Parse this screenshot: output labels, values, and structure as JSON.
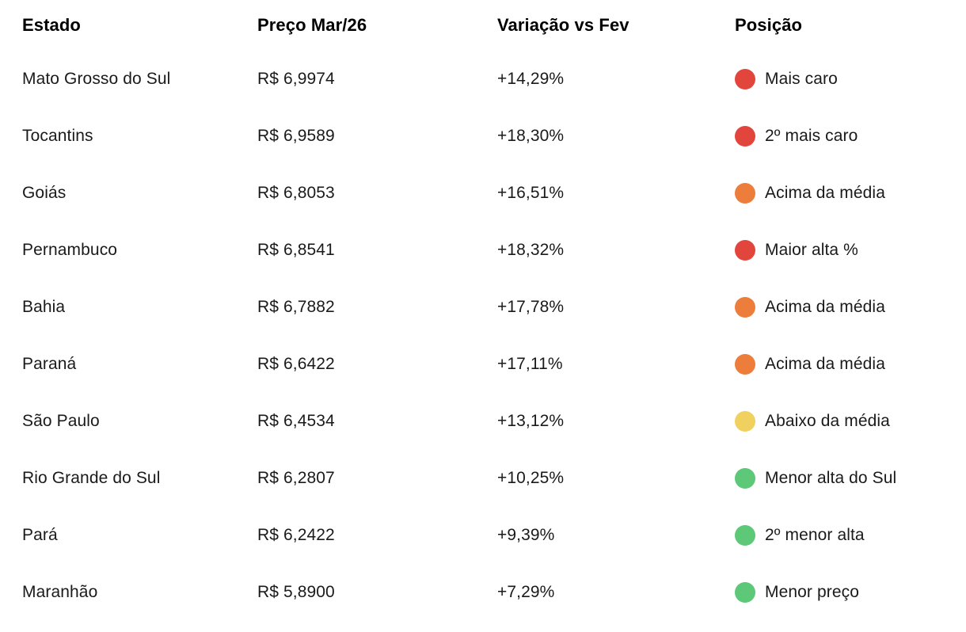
{
  "colors": {
    "red": "#E2453C",
    "orange": "#ED7D3A",
    "yellow": "#F0D05F",
    "green": "#5DC878"
  },
  "table": {
    "columns": [
      {
        "label": "Estado"
      },
      {
        "label": "Preço Mar/26"
      },
      {
        "label": "Variação vs Fev"
      },
      {
        "label": "Posição"
      }
    ],
    "rows": [
      {
        "estado": "Mato Grosso do Sul",
        "preco": "R$ 6,9974",
        "variacao": "+14,29%",
        "posicao": "Mais caro",
        "color": "red"
      },
      {
        "estado": "Tocantins",
        "preco": "R$ 6,9589",
        "variacao": "+18,30%",
        "posicao": "2º mais caro",
        "color": "red"
      },
      {
        "estado": "Goiás",
        "preco": "R$ 6,8053",
        "variacao": "+16,51%",
        "posicao": "Acima da média",
        "color": "orange"
      },
      {
        "estado": "Pernambuco",
        "preco": "R$ 6,8541",
        "variacao": "+18,32%",
        "posicao": "Maior alta %",
        "color": "red"
      },
      {
        "estado": "Bahia",
        "preco": "R$ 6,7882",
        "variacao": "+17,78%",
        "posicao": "Acima da média",
        "color": "orange"
      },
      {
        "estado": "Paraná",
        "preco": "R$ 6,6422",
        "variacao": "+17,11%",
        "posicao": "Acima da média",
        "color": "orange"
      },
      {
        "estado": "São Paulo",
        "preco": "R$ 6,4534",
        "variacao": "+13,12%",
        "posicao": "Abaixo da média",
        "color": "yellow"
      },
      {
        "estado": "Rio Grande do Sul",
        "preco": "R$ 6,2807",
        "variacao": "+10,25%",
        "posicao": "Menor alta do Sul",
        "color": "green"
      },
      {
        "estado": "Pará",
        "preco": "R$ 6,2422",
        "variacao": "+9,39%",
        "posicao": "2º menor alta",
        "color": "green"
      },
      {
        "estado": "Maranhão",
        "preco": "R$ 5,8900",
        "variacao": "+7,29%",
        "posicao": "Menor preço",
        "color": "green"
      }
    ]
  },
  "chart_data": {
    "type": "table",
    "title": "",
    "columns": [
      "Estado",
      "Preço Mar/26",
      "Variação vs Fev",
      "Posição"
    ],
    "rows": [
      [
        "Mato Grosso do Sul",
        "R$ 6,9974",
        "+14,29%",
        "Mais caro"
      ],
      [
        "Tocantins",
        "R$ 6,9589",
        "+18,30%",
        "2º mais caro"
      ],
      [
        "Goiás",
        "R$ 6,8053",
        "+16,51%",
        "Acima da média"
      ],
      [
        "Pernambuco",
        "R$ 6,8541",
        "+18,32%",
        "Maior alta %"
      ],
      [
        "Bahia",
        "R$ 6,7882",
        "+17,78%",
        "Acima da média"
      ],
      [
        "Paraná",
        "R$ 6,6422",
        "+17,11%",
        "Acima da média"
      ],
      [
        "São Paulo",
        "R$ 6,4534",
        "+13,12%",
        "Abaixo da média"
      ],
      [
        "Rio Grande do Sul",
        "R$ 6,2807",
        "+10,25%",
        "Menor alta do Sul"
      ],
      [
        "Pará",
        "R$ 6,2422",
        "+9,39%",
        "2º menor alta"
      ],
      [
        "Maranhão",
        "R$ 5,8900",
        "+7,29%",
        "Menor preço"
      ]
    ],
    "prices_numeric": [
      6.9974,
      6.9589,
      6.8053,
      6.8541,
      6.7882,
      6.6422,
      6.4534,
      6.2807,
      6.2422,
      5.89
    ],
    "variation_pct_numeric": [
      14.29,
      18.3,
      16.51,
      18.32,
      17.78,
      17.11,
      13.12,
      10.25,
      9.39,
      7.29
    ],
    "status_colors": [
      "red",
      "red",
      "orange",
      "red",
      "orange",
      "orange",
      "yellow",
      "green",
      "green",
      "green"
    ]
  }
}
